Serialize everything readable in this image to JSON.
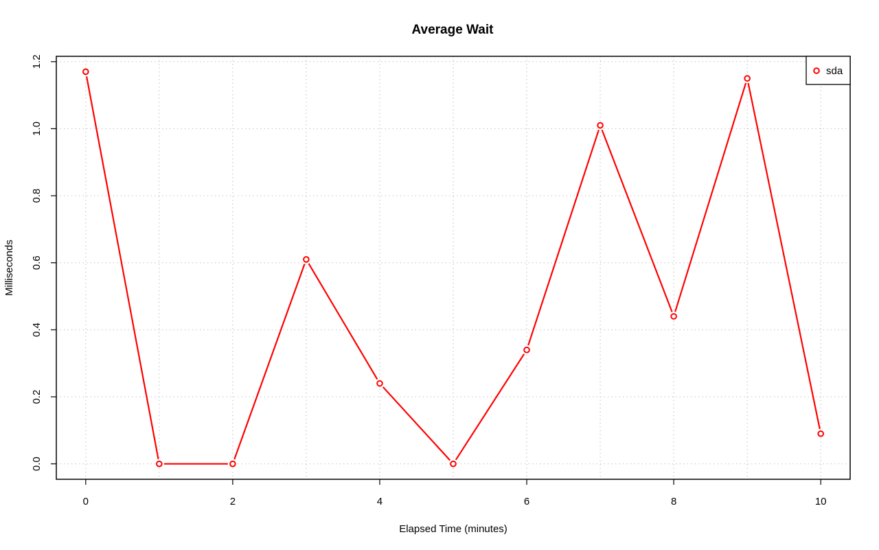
{
  "chart_data": {
    "type": "line",
    "title": "Average Wait",
    "xlabel": "Elapsed Time (minutes)",
    "ylabel": "Milliseconds",
    "x": [
      0,
      1,
      2,
      3,
      4,
      5,
      6,
      7,
      8,
      9,
      10
    ],
    "series": [
      {
        "name": "sda",
        "color": "#ff0000",
        "values": [
          1.17,
          0.0,
          0.0,
          0.61,
          0.24,
          0.0,
          0.34,
          1.01,
          0.44,
          1.15,
          0.09
        ]
      }
    ],
    "xlim": [
      -0.4,
      10.4
    ],
    "ylim": [
      -0.046,
      1.216
    ],
    "x_ticks": [
      0,
      2,
      4,
      6,
      8,
      10
    ],
    "x_tick_labels": [
      "0",
      "2",
      "4",
      "6",
      "8",
      "10"
    ],
    "y_ticks": [
      0.0,
      0.2,
      0.4,
      0.6,
      0.8,
      1.0,
      1.2
    ],
    "y_tick_labels": [
      "0.0",
      "0.2",
      "0.4",
      "0.6",
      "0.8",
      "1.0",
      "1.2"
    ],
    "x_grid": [
      0,
      1,
      2,
      3,
      4,
      5,
      6,
      7,
      8,
      9,
      10
    ],
    "y_grid": [
      0.0,
      0.2,
      0.4,
      0.6,
      0.8,
      1.0,
      1.2
    ],
    "grid": true,
    "grid_color": "#c8c8c8",
    "legend_position": "top-right"
  }
}
